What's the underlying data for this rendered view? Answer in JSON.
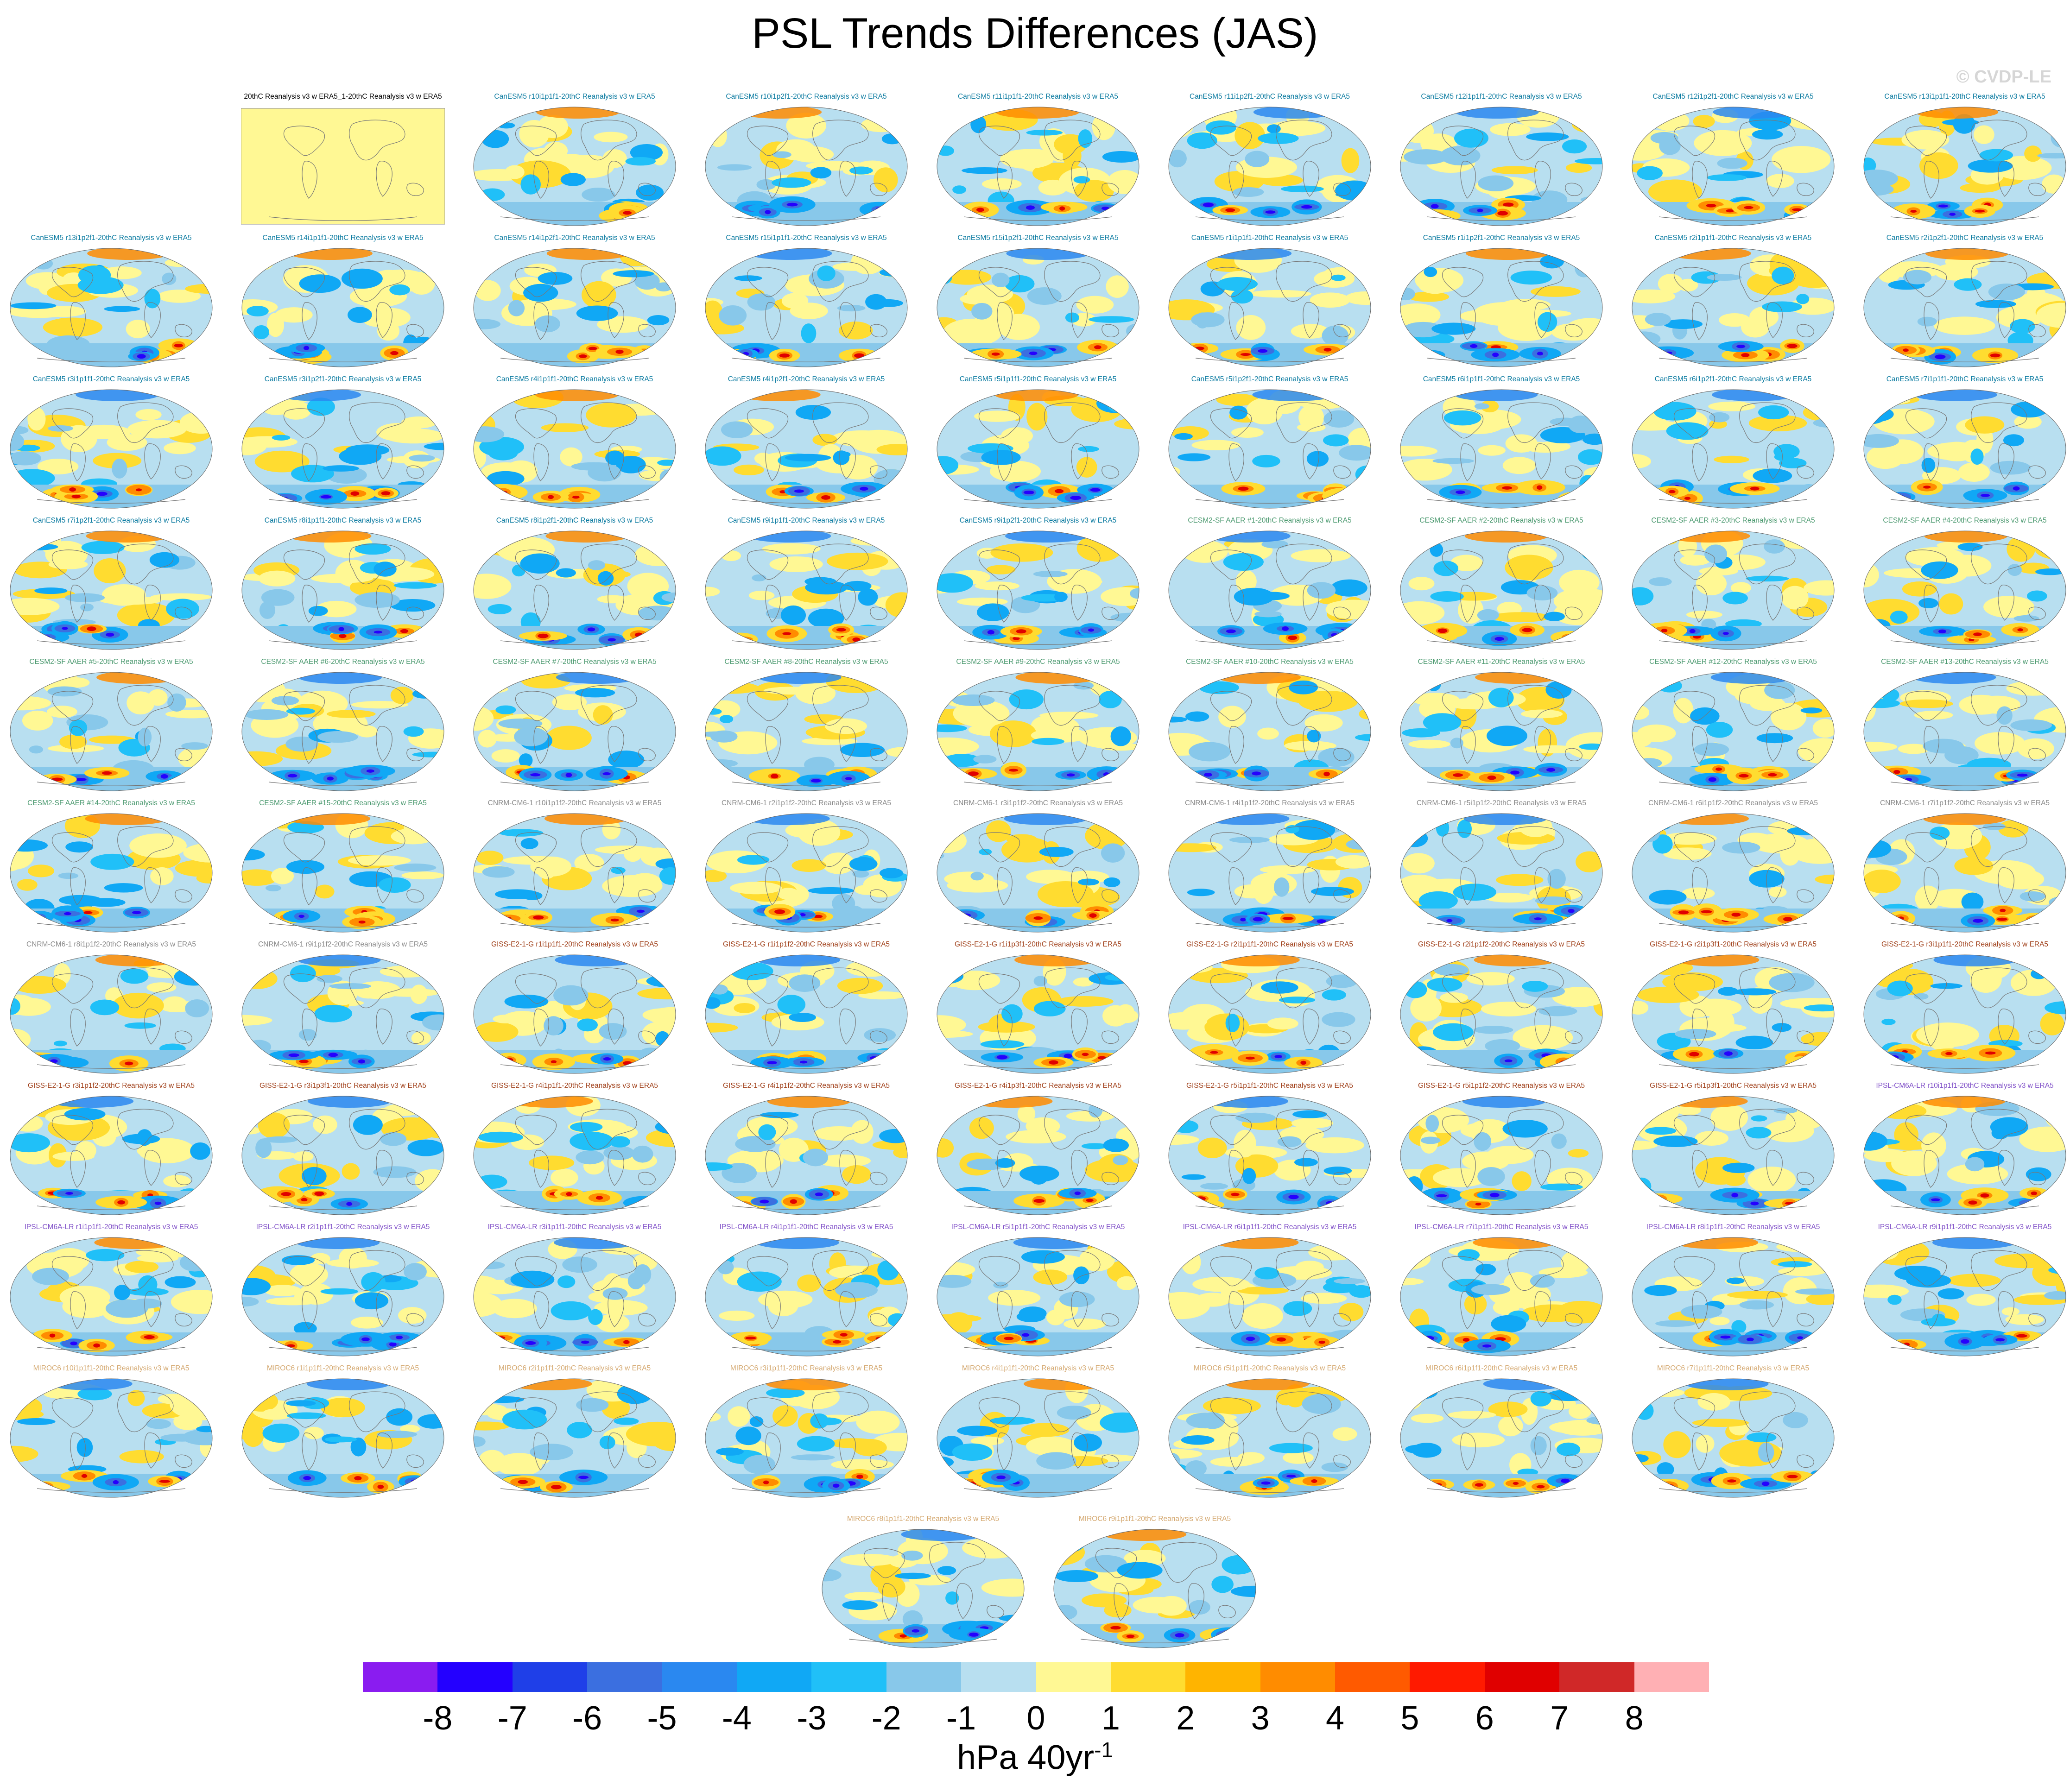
{
  "title": "PSL Trends Differences (JAS)",
  "watermark": "© CVDP-LE",
  "units": {
    "base": "hPa 40yr",
    "exponent": "-1"
  },
  "title_colors": {
    "obs": "#000000",
    "CanESM5": "#0a7aa0",
    "CESM2-SF AAER": "#4c9a70",
    "CNRM-CM6-1": "#8a8a8a",
    "GISS-E2-1-G": "#a0401a",
    "IPSL-CM6A-LR": "#8050c8",
    "MIROC6": "#d4a870"
  },
  "panels": [
    {
      "title": "20thC Reanalysis v3 w ERA5_1-20thC Reanalysis v3 w ERA5",
      "model": "obs",
      "seed": 0
    },
    {
      "title": "CanESM5 r10i1p1f1-20thC Reanalysis v3 w ERA5",
      "model": "CanESM5",
      "seed": 1
    },
    {
      "title": "CanESM5 r10i1p2f1-20thC Reanalysis v3 w ERA5",
      "model": "CanESM5",
      "seed": 2
    },
    {
      "title": "CanESM5 r11i1p1f1-20thC Reanalysis v3 w ERA5",
      "model": "CanESM5",
      "seed": 3
    },
    {
      "title": "CanESM5 r11i1p2f1-20thC Reanalysis v3 w ERA5",
      "model": "CanESM5",
      "seed": 4
    },
    {
      "title": "CanESM5 r12i1p1f1-20thC Reanalysis v3 w ERA5",
      "model": "CanESM5",
      "seed": 5
    },
    {
      "title": "CanESM5 r12i1p2f1-20thC Reanalysis v3 w ERA5",
      "model": "CanESM5",
      "seed": 6
    },
    {
      "title": "CanESM5 r13i1p1f1-20thC Reanalysis v3 w ERA5",
      "model": "CanESM5",
      "seed": 7
    },
    {
      "title": "CanESM5 r13i1p2f1-20thC Reanalysis v3 w ERA5",
      "model": "CanESM5",
      "seed": 8
    },
    {
      "title": "CanESM5 r14i1p1f1-20thC Reanalysis v3 w ERA5",
      "model": "CanESM5",
      "seed": 9
    },
    {
      "title": "CanESM5 r14i1p2f1-20thC Reanalysis v3 w ERA5",
      "model": "CanESM5",
      "seed": 10
    },
    {
      "title": "CanESM5 r15i1p1f1-20thC Reanalysis v3 w ERA5",
      "model": "CanESM5",
      "seed": 11
    },
    {
      "title": "CanESM5 r15i1p2f1-20thC Reanalysis v3 w ERA5",
      "model": "CanESM5",
      "seed": 12
    },
    {
      "title": "CanESM5 r1i1p1f1-20thC Reanalysis v3 w ERA5",
      "model": "CanESM5",
      "seed": 13
    },
    {
      "title": "CanESM5 r1i1p2f1-20thC Reanalysis v3 w ERA5",
      "model": "CanESM5",
      "seed": 14
    },
    {
      "title": "CanESM5 r2i1p1f1-20thC Reanalysis v3 w ERA5",
      "model": "CanESM5",
      "seed": 15
    },
    {
      "title": "CanESM5 r2i1p2f1-20thC Reanalysis v3 w ERA5",
      "model": "CanESM5",
      "seed": 16
    },
    {
      "title": "CanESM5 r3i1p1f1-20thC Reanalysis v3 w ERA5",
      "model": "CanESM5",
      "seed": 17
    },
    {
      "title": "CanESM5 r3i1p2f1-20thC Reanalysis v3 w ERA5",
      "model": "CanESM5",
      "seed": 18
    },
    {
      "title": "CanESM5 r4i1p1f1-20thC Reanalysis v3 w ERA5",
      "model": "CanESM5",
      "seed": 19
    },
    {
      "title": "CanESM5 r4i1p2f1-20thC Reanalysis v3 w ERA5",
      "model": "CanESM5",
      "seed": 20
    },
    {
      "title": "CanESM5 r5i1p1f1-20thC Reanalysis v3 w ERA5",
      "model": "CanESM5",
      "seed": 21
    },
    {
      "title": "CanESM5 r5i1p2f1-20thC Reanalysis v3 w ERA5",
      "model": "CanESM5",
      "seed": 22
    },
    {
      "title": "CanESM5 r6i1p1f1-20thC Reanalysis v3 w ERA5",
      "model": "CanESM5",
      "seed": 23
    },
    {
      "title": "CanESM5 r6i1p2f1-20thC Reanalysis v3 w ERA5",
      "model": "CanESM5",
      "seed": 24
    },
    {
      "title": "CanESM5 r7i1p1f1-20thC Reanalysis v3 w ERA5",
      "model": "CanESM5",
      "seed": 25
    },
    {
      "title": "CanESM5 r7i1p2f1-20thC Reanalysis v3 w ERA5",
      "model": "CanESM5",
      "seed": 26
    },
    {
      "title": "CanESM5 r8i1p1f1-20thC Reanalysis v3 w ERA5",
      "model": "CanESM5",
      "seed": 27
    },
    {
      "title": "CanESM5 r8i1p2f1-20thC Reanalysis v3 w ERA5",
      "model": "CanESM5",
      "seed": 28
    },
    {
      "title": "CanESM5 r9i1p1f1-20thC Reanalysis v3 w ERA5",
      "model": "CanESM5",
      "seed": 29
    },
    {
      "title": "CanESM5 r9i1p2f1-20thC Reanalysis v3 w ERA5",
      "model": "CanESM5",
      "seed": 30
    },
    {
      "title": "CESM2-SF AAER #1-20thC Reanalysis v3 w ERA5",
      "model": "CESM2-SF AAER",
      "seed": 31
    },
    {
      "title": "CESM2-SF AAER #2-20thC Reanalysis v3 w ERA5",
      "model": "CESM2-SF AAER",
      "seed": 32
    },
    {
      "title": "CESM2-SF AAER #3-20thC Reanalysis v3 w ERA5",
      "model": "CESM2-SF AAER",
      "seed": 33
    },
    {
      "title": "CESM2-SF AAER #4-20thC Reanalysis v3 w ERA5",
      "model": "CESM2-SF AAER",
      "seed": 34
    },
    {
      "title": "CESM2-SF AAER #5-20thC Reanalysis v3 w ERA5",
      "model": "CESM2-SF AAER",
      "seed": 35
    },
    {
      "title": "CESM2-SF AAER #6-20thC Reanalysis v3 w ERA5",
      "model": "CESM2-SF AAER",
      "seed": 36
    },
    {
      "title": "CESM2-SF AAER #7-20thC Reanalysis v3 w ERA5",
      "model": "CESM2-SF AAER",
      "seed": 37
    },
    {
      "title": "CESM2-SF AAER #8-20thC Reanalysis v3 w ERA5",
      "model": "CESM2-SF AAER",
      "seed": 38
    },
    {
      "title": "CESM2-SF AAER #9-20thC Reanalysis v3 w ERA5",
      "model": "CESM2-SF AAER",
      "seed": 39
    },
    {
      "title": "CESM2-SF AAER #10-20thC Reanalysis v3 w ERA5",
      "model": "CESM2-SF AAER",
      "seed": 40
    },
    {
      "title": "CESM2-SF AAER #11-20thC Reanalysis v3 w ERA5",
      "model": "CESM2-SF AAER",
      "seed": 41
    },
    {
      "title": "CESM2-SF AAER #12-20thC Reanalysis v3 w ERA5",
      "model": "CESM2-SF AAER",
      "seed": 42
    },
    {
      "title": "CESM2-SF AAER #13-20thC Reanalysis v3 w ERA5",
      "model": "CESM2-SF AAER",
      "seed": 43
    },
    {
      "title": "CESM2-SF AAER #14-20thC Reanalysis v3 w ERA5",
      "model": "CESM2-SF AAER",
      "seed": 44
    },
    {
      "title": "CESM2-SF AAER #15-20thC Reanalysis v3 w ERA5",
      "model": "CESM2-SF AAER",
      "seed": 45
    },
    {
      "title": "CNRM-CM6-1 r10i1p1f2-20thC Reanalysis v3 w ERA5",
      "model": "CNRM-CM6-1",
      "seed": 46
    },
    {
      "title": "CNRM-CM6-1 r2i1p1f2-20thC Reanalysis v3 w ERA5",
      "model": "CNRM-CM6-1",
      "seed": 47
    },
    {
      "title": "CNRM-CM6-1 r3i1p1f2-20thC Reanalysis v3 w ERA5",
      "model": "CNRM-CM6-1",
      "seed": 48
    },
    {
      "title": "CNRM-CM6-1 r4i1p1f2-20thC Reanalysis v3 w ERA5",
      "model": "CNRM-CM6-1",
      "seed": 49
    },
    {
      "title": "CNRM-CM6-1 r5i1p1f2-20thC Reanalysis v3 w ERA5",
      "model": "CNRM-CM6-1",
      "seed": 50
    },
    {
      "title": "CNRM-CM6-1 r6i1p1f2-20thC Reanalysis v3 w ERA5",
      "model": "CNRM-CM6-1",
      "seed": 51
    },
    {
      "title": "CNRM-CM6-1 r7i1p1f2-20thC Reanalysis v3 w ERA5",
      "model": "CNRM-CM6-1",
      "seed": 52
    },
    {
      "title": "CNRM-CM6-1 r8i1p1f2-20thC Reanalysis v3 w ERA5",
      "model": "CNRM-CM6-1",
      "seed": 53
    },
    {
      "title": "CNRM-CM6-1 r9i1p1f2-20thC Reanalysis v3 w ERA5",
      "model": "CNRM-CM6-1",
      "seed": 54
    },
    {
      "title": "GISS-E2-1-G r1i1p1f1-20thC Reanalysis v3 w ERA5",
      "model": "GISS-E2-1-G",
      "seed": 55
    },
    {
      "title": "GISS-E2-1-G r1i1p1f2-20thC Reanalysis v3 w ERA5",
      "model": "GISS-E2-1-G",
      "seed": 56
    },
    {
      "title": "GISS-E2-1-G r1i1p3f1-20thC Reanalysis v3 w ERA5",
      "model": "GISS-E2-1-G",
      "seed": 57
    },
    {
      "title": "GISS-E2-1-G r2i1p1f1-20thC Reanalysis v3 w ERA5",
      "model": "GISS-E2-1-G",
      "seed": 58
    },
    {
      "title": "GISS-E2-1-G r2i1p1f2-20thC Reanalysis v3 w ERA5",
      "model": "GISS-E2-1-G",
      "seed": 59
    },
    {
      "title": "GISS-E2-1-G r2i1p3f1-20thC Reanalysis v3 w ERA5",
      "model": "GISS-E2-1-G",
      "seed": 60
    },
    {
      "title": "GISS-E2-1-G r3i1p1f1-20thC Reanalysis v3 w ERA5",
      "model": "GISS-E2-1-G",
      "seed": 61
    },
    {
      "title": "GISS-E2-1-G r3i1p1f2-20thC Reanalysis v3 w ERA5",
      "model": "GISS-E2-1-G",
      "seed": 62
    },
    {
      "title": "GISS-E2-1-G r3i1p3f1-20thC Reanalysis v3 w ERA5",
      "model": "GISS-E2-1-G",
      "seed": 63
    },
    {
      "title": "GISS-E2-1-G r4i1p1f1-20thC Reanalysis v3 w ERA5",
      "model": "GISS-E2-1-G",
      "seed": 64
    },
    {
      "title": "GISS-E2-1-G r4i1p1f2-20thC Reanalysis v3 w ERA5",
      "model": "GISS-E2-1-G",
      "seed": 65
    },
    {
      "title": "GISS-E2-1-G r4i1p3f1-20thC Reanalysis v3 w ERA5",
      "model": "GISS-E2-1-G",
      "seed": 66
    },
    {
      "title": "GISS-E2-1-G r5i1p1f1-20thC Reanalysis v3 w ERA5",
      "model": "GISS-E2-1-G",
      "seed": 67
    },
    {
      "title": "GISS-E2-1-G r5i1p1f2-20thC Reanalysis v3 w ERA5",
      "model": "GISS-E2-1-G",
      "seed": 68
    },
    {
      "title": "GISS-E2-1-G r5i1p3f1-20thC Reanalysis v3 w ERA5",
      "model": "GISS-E2-1-G",
      "seed": 69
    },
    {
      "title": "IPSL-CM6A-LR r10i1p1f1-20thC Reanalysis v3 w ERA5",
      "model": "IPSL-CM6A-LR",
      "seed": 70
    },
    {
      "title": "IPSL-CM6A-LR r1i1p1f1-20thC Reanalysis v3 w ERA5",
      "model": "IPSL-CM6A-LR",
      "seed": 71
    },
    {
      "title": "IPSL-CM6A-LR r2i1p1f1-20thC Reanalysis v3 w ERA5",
      "model": "IPSL-CM6A-LR",
      "seed": 72
    },
    {
      "title": "IPSL-CM6A-LR r3i1p1f1-20thC Reanalysis v3 w ERA5",
      "model": "IPSL-CM6A-LR",
      "seed": 73
    },
    {
      "title": "IPSL-CM6A-LR r4i1p1f1-20thC Reanalysis v3 w ERA5",
      "model": "IPSL-CM6A-LR",
      "seed": 74
    },
    {
      "title": "IPSL-CM6A-LR r5i1p1f1-20thC Reanalysis v3 w ERA5",
      "model": "IPSL-CM6A-LR",
      "seed": 75
    },
    {
      "title": "IPSL-CM6A-LR r6i1p1f1-20thC Reanalysis v3 w ERA5",
      "model": "IPSL-CM6A-LR",
      "seed": 76
    },
    {
      "title": "IPSL-CM6A-LR r7i1p1f1-20thC Reanalysis v3 w ERA5",
      "model": "IPSL-CM6A-LR",
      "seed": 77
    },
    {
      "title": "IPSL-CM6A-LR r8i1p1f1-20thC Reanalysis v3 w ERA5",
      "model": "IPSL-CM6A-LR",
      "seed": 78
    },
    {
      "title": "IPSL-CM6A-LR r9i1p1f1-20thC Reanalysis v3 w ERA5",
      "model": "IPSL-CM6A-LR",
      "seed": 79
    },
    {
      "title": "MIROC6 r10i1p1f1-20thC Reanalysis v3 w ERA5",
      "model": "MIROC6",
      "seed": 80
    },
    {
      "title": "MIROC6 r1i1p1f1-20thC Reanalysis v3 w ERA5",
      "model": "MIROC6",
      "seed": 81
    },
    {
      "title": "MIROC6 r2i1p1f1-20thC Reanalysis v3 w ERA5",
      "model": "MIROC6",
      "seed": 82
    },
    {
      "title": "MIROC6 r3i1p1f1-20thC Reanalysis v3 w ERA5",
      "model": "MIROC6",
      "seed": 83
    },
    {
      "title": "MIROC6 r4i1p1f1-20thC Reanalysis v3 w ERA5",
      "model": "MIROC6",
      "seed": 84
    },
    {
      "title": "MIROC6 r5i1p1f1-20thC Reanalysis v3 w ERA5",
      "model": "MIROC6",
      "seed": 85
    },
    {
      "title": "MIROC6 r6i1p1f1-20thC Reanalysis v3 w ERA5",
      "model": "MIROC6",
      "seed": 86
    },
    {
      "title": "MIROC6 r7i1p1f1-20thC Reanalysis v3 w ERA5",
      "model": "MIROC6",
      "seed": 87
    },
    {
      "title": "MIROC6 r8i1p1f1-20thC Reanalysis v3 w ERA5",
      "model": "MIROC6",
      "seed": 88
    },
    {
      "title": "MIROC6 r9i1p1f1-20thC Reanalysis v3 w ERA5",
      "model": "MIROC6",
      "seed": 89
    }
  ],
  "colorbar": {
    "colors": [
      "#8a1cf0",
      "#2400ff",
      "#1f3fe8",
      "#3b6fe0",
      "#2a88f0",
      "#10a8f5",
      "#20c0f8",
      "#88c8ea",
      "#b8dff0",
      "#fff894",
      "#ffdc30",
      "#ffb400",
      "#ff8c00",
      "#ff5a00",
      "#ff1a00",
      "#e00000",
      "#d02828",
      "#ffb0b4"
    ],
    "labels": [
      "-8",
      "-7",
      "-6",
      "-5",
      "-4",
      "-3",
      "-2",
      "-1",
      "0",
      "1",
      "2",
      "3",
      "4",
      "5",
      "6",
      "7",
      "8"
    ]
  }
}
